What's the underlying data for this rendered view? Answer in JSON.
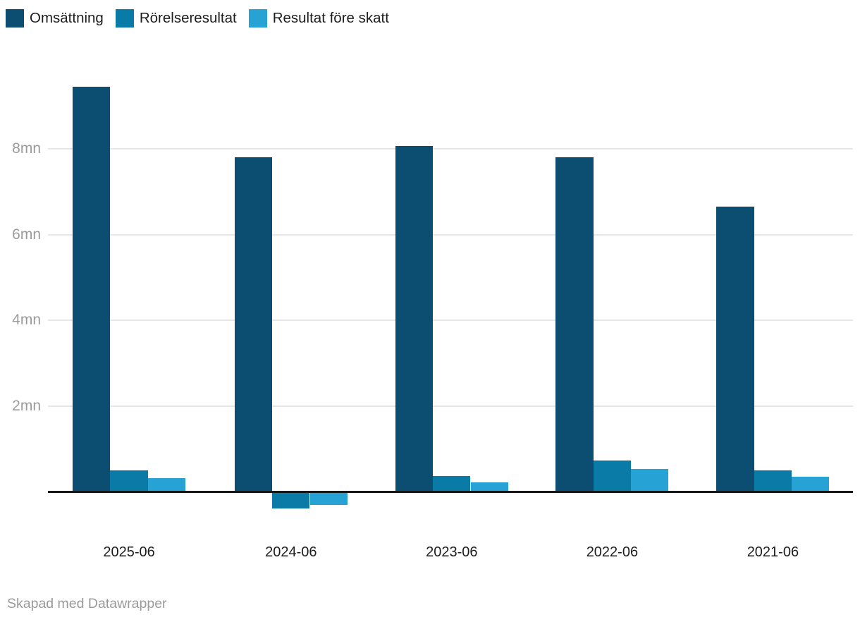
{
  "footer": {
    "credit": "Skapad med Datawrapper"
  },
  "colors": {
    "series_dark": "#0b4e72",
    "series_medium": "#0a7aa6",
    "series_light": "#26a3d4",
    "gridline": "#e6e6e6",
    "axis_line": "#161616",
    "y_tick_text": "#9b9b9b",
    "x_tick_text": "#1d1d1d",
    "legend_text": "#1d1d1d",
    "background": "#ffffff"
  },
  "chart_data": {
    "type": "bar",
    "unit": "mn",
    "categories": [
      "2025-06",
      "2024-06",
      "2023-06",
      "2022-06",
      "2021-06"
    ],
    "series": [
      {
        "name": "Omsättning",
        "color": "#0b4e72",
        "values": [
          9.45,
          7.8,
          8.06,
          7.81,
          6.65
        ]
      },
      {
        "name": "Rörelseresultat",
        "color": "#0a7aa6",
        "values": [
          0.5,
          -0.4,
          0.37,
          0.72,
          0.5
        ]
      },
      {
        "name": "Resultat före skatt",
        "color": "#26a3d4",
        "values": [
          0.32,
          -0.32,
          0.22,
          0.52,
          0.35
        ]
      }
    ],
    "title": "",
    "xlabel": "",
    "ylabel": "",
    "yticks": [
      2,
      4,
      6,
      8
    ],
    "ytick_labels": [
      "2mn",
      "4mn",
      "6mn",
      "8mn"
    ],
    "ylim": [
      -0.6,
      9.8
    ],
    "grid": true,
    "legend_position": "top-left",
    "bar_grouping": "grouped"
  }
}
